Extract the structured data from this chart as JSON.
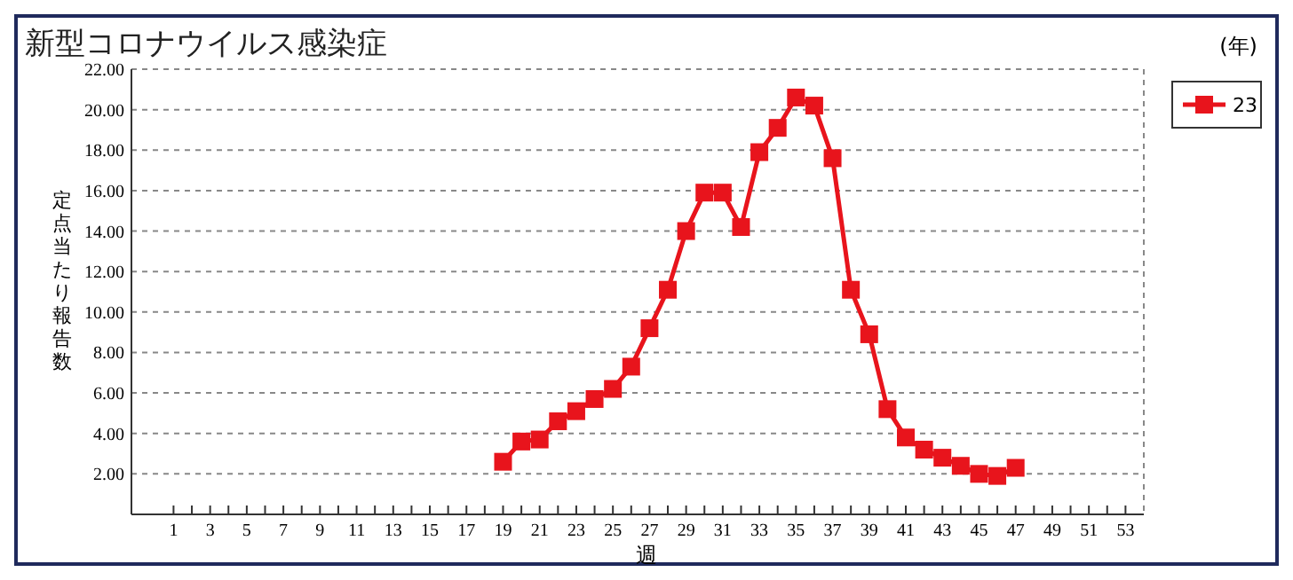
{
  "chart_data": {
    "type": "line",
    "title": "新型コロナウイルス感染症",
    "xlabel": "週",
    "ylabel": "定点当たり報告数",
    "legend_title": "(年)",
    "x": [
      19,
      20,
      21,
      22,
      23,
      24,
      25,
      26,
      27,
      28,
      29,
      30,
      31,
      32,
      33,
      34,
      35,
      36,
      37,
      38,
      39,
      40,
      41,
      42,
      43,
      44,
      45,
      46,
      47
    ],
    "series": [
      {
        "name": "23",
        "color": "#e8141c",
        "values": [
          2.6,
          3.6,
          3.7,
          4.6,
          5.1,
          5.7,
          6.2,
          7.3,
          9.2,
          11.1,
          14.0,
          15.9,
          15.9,
          14.2,
          17.9,
          19.1,
          20.6,
          20.2,
          17.6,
          11.1,
          8.9,
          5.2,
          3.8,
          3.2,
          2.8,
          2.4,
          2.0,
          1.9,
          2.3
        ]
      }
    ],
    "xlim": [
      -1.3,
      54
    ],
    "xticks": [
      1,
      {
        "value": 2,
        "label": null
      },
      3,
      {
        "value": 4,
        "label": null
      },
      5,
      {
        "value": 6,
        "label": null
      },
      7,
      {
        "value": 8,
        "label": null
      },
      9,
      {
        "value": 10,
        "label": null
      },
      11,
      {
        "value": 12,
        "label": null
      },
      13,
      {
        "value": 14,
        "label": null
      },
      15,
      {
        "value": 16,
        "label": null
      },
      17,
      {
        "value": 18,
        "label": null
      },
      19,
      {
        "value": 20,
        "label": null
      },
      21,
      {
        "value": 22,
        "label": null
      },
      23,
      {
        "value": 24,
        "label": null
      },
      25,
      {
        "value": 26,
        "label": null
      },
      27,
      {
        "value": 28,
        "label": null
      },
      29,
      {
        "value": 30,
        "label": null
      },
      31,
      {
        "value": 32,
        "label": null
      },
      33,
      {
        "value": 34,
        "label": null
      },
      35,
      {
        "value": 36,
        "label": null
      },
      37,
      {
        "value": 38,
        "label": null
      },
      39,
      {
        "value": 40,
        "label": null
      },
      41,
      {
        "value": 42,
        "label": null
      },
      43,
      {
        "value": 44,
        "label": null
      },
      45,
      {
        "value": 46,
        "label": null
      },
      47,
      {
        "value": 48,
        "label": null
      },
      49,
      {
        "value": 50,
        "label": null
      },
      51,
      {
        "value": 52,
        "label": null
      },
      53
    ],
    "ylim": [
      0,
      22
    ],
    "yticks": [
      {
        "value": 2,
        "label": "2.00"
      },
      {
        "value": 4,
        "label": "4.00"
      },
      {
        "value": 6,
        "label": "6.00"
      },
      {
        "value": 8,
        "label": "8.00"
      },
      {
        "value": 10,
        "label": "10.00"
      },
      {
        "value": 12,
        "label": "12.00"
      },
      {
        "value": 14,
        "label": "14.00"
      },
      {
        "value": 16,
        "label": "16.00"
      },
      {
        "value": 18,
        "label": "18.00"
      },
      {
        "value": 20,
        "label": "20.00"
      },
      {
        "value": 22,
        "label": "22.00"
      }
    ],
    "grid": "y",
    "legend": "top right",
    "marker": "square",
    "line_style": "solid"
  }
}
